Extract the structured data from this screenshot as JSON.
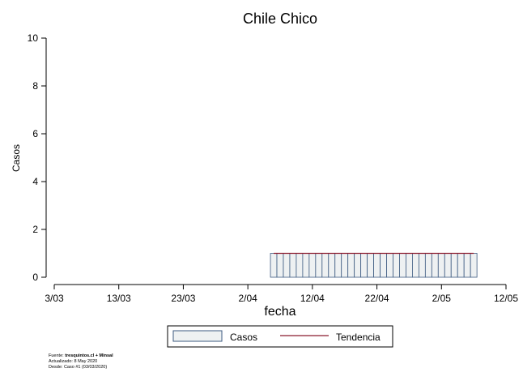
{
  "chart_data": {
    "type": "bar",
    "title": "Chile Chico",
    "xlabel": "fecha",
    "ylabel": "Casos",
    "ylim": [
      0,
      10
    ],
    "yticks": [
      0,
      2,
      4,
      6,
      8,
      10
    ],
    "xlim": [
      "2020-03-03",
      "2020-05-12"
    ],
    "xticks": [
      "3/03",
      "13/03",
      "23/03",
      "2/04",
      "12/04",
      "22/04",
      "2/05",
      "12/05"
    ],
    "bar_start": "2020-04-06",
    "bar_end": "2020-05-07",
    "series": [
      {
        "name": "Casos",
        "value": 1,
        "fill": "#eef1f2",
        "stroke": "#3c5a80"
      },
      {
        "name": "Tendencia",
        "value": 1,
        "color": "#8b1a2e"
      }
    ],
    "grid": false,
    "legend_position": "bottom"
  },
  "footer": {
    "source_label": "Fuente:",
    "source_value": "tresquintos.cl + Minsal",
    "updated": "Actualizado: 8 May 2020",
    "since": "Desde: Caso #1  (03/03/2020)"
  }
}
